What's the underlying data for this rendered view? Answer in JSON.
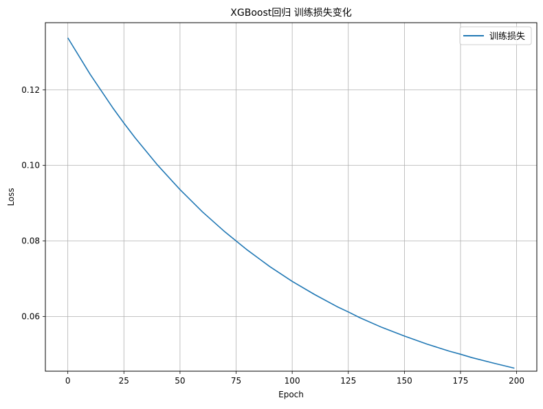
{
  "chart_data": {
    "type": "line",
    "title": "XGBoost回归 训练损失变化",
    "xlabel": "Epoch",
    "ylabel": "Loss",
    "xlim": [
      -10,
      209
    ],
    "ylim": [
      0.0455,
      0.1378
    ],
    "xticks": [
      0,
      25,
      50,
      75,
      100,
      125,
      150,
      175,
      200
    ],
    "xtick_labels": [
      "0",
      "25",
      "50",
      "75",
      "100",
      "125",
      "150",
      "175",
      "200"
    ],
    "yticks": [
      0.06,
      0.08,
      0.1,
      0.12
    ],
    "ytick_labels": [
      "0.06",
      "0.08",
      "0.10",
      "0.12"
    ],
    "grid": true,
    "legend_position": "top-right",
    "series": [
      {
        "name": "训练损失",
        "color": "#1f77b4",
        "x": [
          0,
          10,
          20,
          25,
          30,
          40,
          50,
          60,
          70,
          75,
          80,
          90,
          100,
          110,
          120,
          125,
          130,
          140,
          150,
          160,
          170,
          175,
          180,
          190,
          199
        ],
        "y": [
          0.1338,
          0.1241,
          0.1153,
          0.1112,
          0.1073,
          0.1001,
          0.0936,
          0.0877,
          0.0824,
          0.08,
          0.0776,
          0.0732,
          0.0693,
          0.0658,
          0.0626,
          0.0612,
          0.0597,
          0.0571,
          0.0548,
          0.0527,
          0.0508,
          0.05,
          0.0491,
          0.0476,
          0.0463
        ]
      }
    ]
  }
}
